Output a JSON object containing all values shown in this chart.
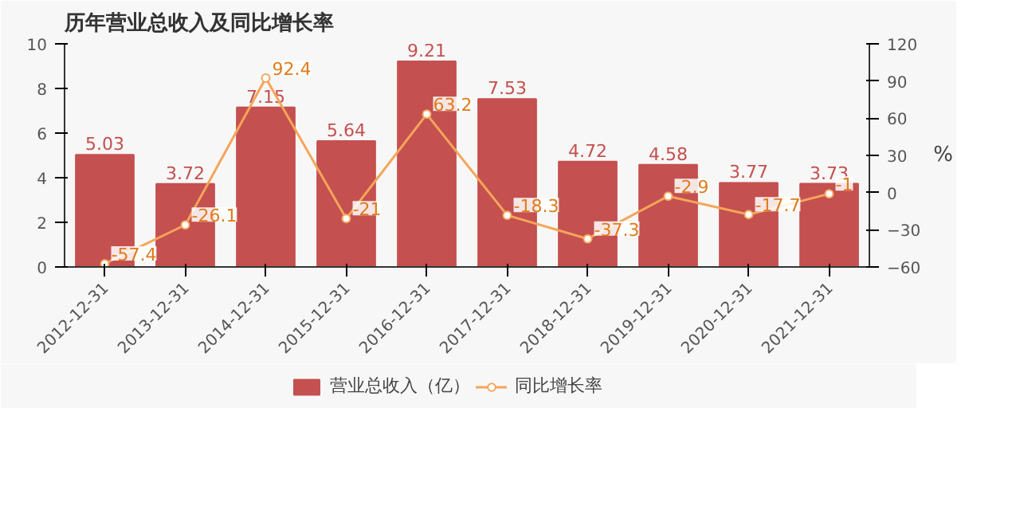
{
  "chart_data": {
    "type": "bar",
    "title": "历年营业总收入及同比增长率",
    "y2label": "%",
    "categories": [
      "2012-12-31",
      "2013-12-31",
      "2014-12-31",
      "2015-12-31",
      "2016-12-31",
      "2017-12-31",
      "2018-12-31",
      "2019-12-31",
      "2020-12-31",
      "2021-12-31"
    ],
    "series": [
      {
        "name": "营业总收入（亿）",
        "type": "bar",
        "color": "#c4504f",
        "values": [
          5.03,
          3.72,
          7.15,
          5.64,
          9.21,
          7.53,
          4.72,
          4.58,
          3.77,
          3.73
        ]
      },
      {
        "name": "同比增长率",
        "type": "line",
        "color": "#f5a55a",
        "axis": "y2",
        "marker": "circle",
        "values": [
          -57.4,
          -26.1,
          92.4,
          -21,
          63.2,
          -18.3,
          -37.3,
          -2.9,
          -17.7,
          -1
        ]
      }
    ],
    "ylim": [
      0,
      10
    ],
    "yticks": [
      0,
      2,
      4,
      6,
      8,
      10
    ],
    "y2lim": [
      -60,
      120
    ],
    "y2ticks": [
      -60,
      -30,
      0,
      30,
      60,
      90,
      120
    ],
    "data_labels": true,
    "legend": "bottom",
    "grid": false
  }
}
